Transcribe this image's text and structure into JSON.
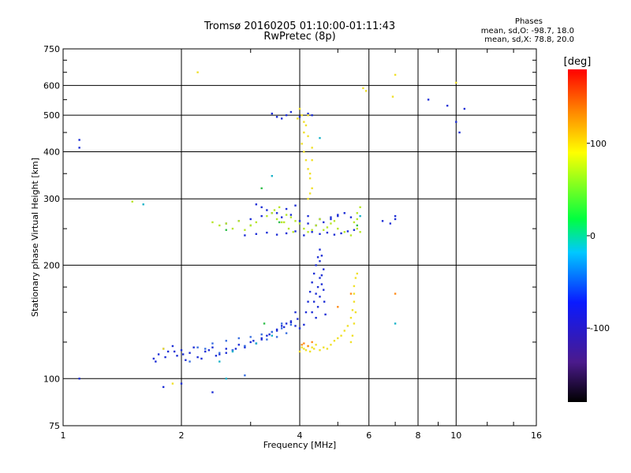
{
  "title": {
    "line1": "Tromsø 20160205 01:10:00-01:11:43",
    "line2": "RwPretec (8p)"
  },
  "stats": {
    "heading": "Phases",
    "o_mode": "mean, sd,O: -98.7, 18.0",
    "x_mode": "mean, sd,X:  78.8, 20.0"
  },
  "chart_data": {
    "type": "scatter",
    "xlabel": "Frequency [MHz]",
    "ylabel": "Stationary phase Virtual Height [km]",
    "x_scale": "log",
    "y_scale": "log",
    "xlim": [
      1,
      16
    ],
    "ylim": [
      75,
      750
    ],
    "x_ticks": [
      1,
      2,
      4,
      6,
      8,
      10,
      16
    ],
    "x_tick_labels": [
      "1",
      "2",
      "4",
      "6",
      "8",
      "10",
      "16"
    ],
    "y_ticks": [
      75,
      100,
      200,
      300,
      400,
      500,
      600,
      750
    ],
    "y_tick_labels": [
      "75",
      "100",
      "200",
      "300",
      "400",
      "500",
      "600",
      "750"
    ],
    "grid": true,
    "colorbar": {
      "label": "[deg]",
      "range": [
        -180,
        180
      ],
      "ticks": [
        100,
        0,
        -100
      ],
      "tick_labels": [
        "100",
        "0",
        "-100"
      ]
    },
    "series": [
      {
        "color": "#1e2fd6",
        "phase": -100,
        "x": [
          1.7,
          1.75,
          1.8,
          1.85,
          1.9,
          1.95,
          2.0,
          2.05,
          2.1,
          2.2,
          2.3,
          2.4,
          2.5,
          2.6,
          2.7,
          2.8,
          2.9,
          3.0,
          3.1,
          3.2,
          3.3,
          3.4,
          3.5,
          3.6,
          3.7,
          3.8,
          3.9,
          4.0,
          1.72,
          1.82,
          1.92,
          2.02,
          2.15,
          2.25,
          2.35,
          2.45,
          2.6,
          2.75,
          2.9,
          3.05,
          3.2,
          3.35,
          3.5,
          3.65,
          3.8,
          3.95,
          4.1,
          4.15,
          4.2,
          4.25,
          4.3,
          4.35,
          4.4,
          4.45,
          4.5,
          4.55,
          4.3,
          4.35,
          4.4,
          4.45,
          4.5,
          4.4,
          4.45,
          4.5,
          4.55,
          4.6,
          4.5,
          4.55,
          4.6,
          4.62,
          4.65,
          2.6,
          2.8,
          3.0,
          3.2,
          3.4,
          3.6,
          3.8,
          4.0,
          4.2,
          4.4,
          4.6,
          4.8,
          5.0,
          5.2,
          5.4,
          2.9,
          3.1,
          3.3,
          3.5,
          3.7,
          3.9,
          4.1,
          4.3,
          4.5,
          4.7,
          4.9,
          5.1,
          5.3,
          5.5,
          3.1,
          3.2,
          3.3,
          3.5,
          3.7,
          3.9,
          4.2,
          4.5,
          4.8,
          5.0,
          6.5,
          6.8,
          7.0,
          3.4,
          3.5,
          3.6,
          3.7,
          3.8,
          4.0,
          4.2,
          4.3,
          1.1,
          1.1,
          1.1,
          8.5,
          9.5,
          10.5,
          10.0,
          7.0,
          2.0,
          1.8,
          2.4,
          3.9,
          10.2
        ],
        "y": [
          113,
          116,
          120,
          118,
          122,
          115,
          119,
          112,
          117,
          114,
          118,
          121,
          116,
          120,
          119,
          123,
          121,
          125,
          124,
          128,
          130,
          133,
          135,
          138,
          140,
          142,
          138,
          136,
          111,
          114,
          118,
          116,
          121,
          113,
          119,
          115,
          117,
          120,
          122,
          126,
          127,
          131,
          134,
          137,
          141,
          144,
          139,
          150,
          160,
          170,
          180,
          190,
          200,
          210,
          220,
          212,
          150,
          160,
          168,
          175,
          185,
          145,
          155,
          165,
          178,
          195,
          205,
          188,
          172,
          160,
          148,
          258,
          262,
          265,
          270,
          275,
          268,
          272,
          262,
          258,
          255,
          260,
          265,
          270,
          275,
          268,
          240,
          242,
          244,
          241,
          243,
          246,
          240,
          245,
          242,
          244,
          241,
          243,
          246,
          248,
          290,
          285,
          280,
          275,
          282,
          288,
          270,
          265,
          268,
          272,
          262,
          258,
          265,
          505,
          495,
          490,
          500,
          510,
          495,
          505,
          500,
          430,
          410,
          100,
          550,
          530,
          520,
          480,
          270,
          97,
          95,
          92,
          150,
          450
        ]
      },
      {
        "color": "#3a6fe0",
        "phase": -80,
        "x": [
          2.2,
          2.4,
          2.6,
          2.8,
          3.0,
          3.2,
          3.4,
          3.6,
          3.8,
          2.5,
          2.7,
          2.9,
          3.1,
          3.3,
          3.5,
          3.7,
          2.3,
          2.1,
          2.9,
          3.6
        ],
        "y": [
          121,
          124,
          126,
          128,
          129,
          131,
          133,
          136,
          139,
          117,
          119,
          122,
          124,
          127,
          129,
          132,
          120,
          111,
          102,
          140
        ]
      },
      {
        "color": "#19b3c9",
        "phase": -40,
        "x": [
          2.7,
          3.1,
          2.5,
          3.4,
          5.7,
          3.4,
          7.0,
          1.6,
          4.5,
          2.6
        ],
        "y": [
          118,
          124,
          111,
          130,
          270,
          345,
          140,
          290,
          435,
          100
        ]
      },
      {
        "color": "#2fbf4a",
        "phase": 20,
        "x": [
          3.25,
          3.0,
          2.6,
          5.6,
          3.55,
          3.2
        ],
        "y": [
          140,
          255,
          248,
          255,
          260,
          320
        ]
      },
      {
        "color": "#b8e62b",
        "phase": 70,
        "x": [
          2.4,
          2.5,
          2.6,
          2.7,
          2.8,
          2.9,
          3.0,
          3.1,
          3.3,
          3.4,
          3.5,
          3.6,
          3.7,
          3.8,
          3.9,
          4.0,
          4.1,
          4.2,
          4.3,
          3.45,
          3.55,
          3.65,
          3.75,
          3.85,
          4.4,
          4.5,
          4.6,
          4.7,
          4.8,
          4.9,
          5.0,
          5.2,
          5.4,
          5.6,
          5.7,
          5.6,
          5.5,
          5.6,
          5.7,
          1.5
        ],
        "y": [
          260,
          255,
          258,
          250,
          262,
          248,
          255,
          260,
          270,
          275,
          265,
          260,
          272,
          268,
          262,
          258,
          250,
          245,
          248,
          280,
          285,
          260,
          250,
          245,
          255,
          265,
          248,
          252,
          258,
          262,
          250,
          245,
          240,
          265,
          285,
          275,
          260,
          250,
          245,
          295
        ]
      },
      {
        "color": "#f0e02a",
        "phase": 100,
        "x": [
          4.0,
          4.05,
          4.1,
          4.15,
          4.2,
          4.25,
          4.3,
          4.35,
          4.4,
          4.5,
          4.6,
          4.7,
          4.8,
          4.9,
          5.0,
          5.1,
          5.2,
          5.3,
          5.4,
          5.45,
          5.5,
          5.5,
          5.5,
          5.55,
          5.6,
          5.55,
          5.5,
          5.45,
          5.4,
          4.2,
          4.25,
          4.3,
          4.25,
          4.2,
          4.15,
          4.1,
          4.05,
          4.1,
          4.15,
          4.2,
          4.1,
          4.05,
          4.0,
          3.95,
          4.25,
          4.3,
          4.3,
          4.2,
          5.9,
          5.8,
          7.0,
          6.9,
          2.2,
          10.0,
          1.9,
          1.8
        ],
        "y": [
          118,
          121,
          120,
          119,
          122,
          118,
          121,
          120,
          123,
          119,
          121,
          120,
          123,
          126,
          128,
          130,
          134,
          138,
          145,
          152,
          160,
          168,
          176,
          185,
          190,
          150,
          140,
          130,
          125,
          300,
          310,
          320,
          340,
          360,
          380,
          400,
          420,
          450,
          470,
          500,
          480,
          500,
          520,
          490,
          350,
          380,
          410,
          440,
          580,
          590,
          640,
          560,
          650,
          610,
          97,
          120
        ]
      },
      {
        "color": "#ff8c1a",
        "phase": 130,
        "x": [
          4.05,
          4.1,
          4.2,
          4.3,
          5.4,
          7.0,
          5.0
        ],
        "y": [
          123,
          124,
          122,
          125,
          168,
          168,
          155
        ]
      }
    ]
  },
  "colors": {
    "o_mode": "#1e2fd6",
    "x_mode": "#f0e02a",
    "grid": "#000000"
  }
}
